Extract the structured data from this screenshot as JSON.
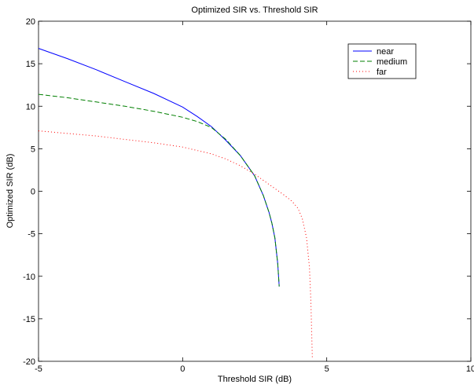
{
  "chart_data": {
    "type": "line",
    "title": "Optimized SIR vs. Threshold SIR",
    "xlabel": "Threshold SIR (dB)",
    "ylabel": "Optimized SIR (dB)",
    "xlim": [
      -5,
      10
    ],
    "ylim": [
      -20,
      20
    ],
    "xticks": [
      -5,
      0,
      5,
      10
    ],
    "yticks": [
      -20,
      -15,
      -10,
      -5,
      0,
      5,
      10,
      15,
      20
    ],
    "grid": false,
    "legend_position": "top-right",
    "series": [
      {
        "name": "near",
        "color": "#0000ff",
        "style": "solid",
        "x": [
          -5,
          -4,
          -3,
          -2,
          -1,
          0,
          0.5,
          1,
          1.5,
          2,
          2.5,
          2.8,
          3.0,
          3.1,
          3.2,
          3.3,
          3.35
        ],
        "y": [
          16.8,
          15.6,
          14.3,
          12.9,
          11.5,
          9.9,
          8.8,
          7.6,
          6.0,
          4.2,
          1.8,
          -0.5,
          -2.5,
          -3.8,
          -5.5,
          -8.5,
          -11.2
        ]
      },
      {
        "name": "medium",
        "color": "#007f00",
        "style": "dashed",
        "x": [
          -5,
          -4,
          -3,
          -2,
          -1,
          0,
          0.5,
          1,
          1.5,
          2,
          2.5,
          2.8,
          3.0,
          3.1,
          3.2,
          3.3,
          3.35
        ],
        "y": [
          11.4,
          11.0,
          10.5,
          10.0,
          9.4,
          8.7,
          8.2,
          7.5,
          6.1,
          4.2,
          1.8,
          -0.5,
          -2.5,
          -3.8,
          -5.5,
          -8.5,
          -11.2
        ]
      },
      {
        "name": "far",
        "color": "#ff0000",
        "style": "dotted",
        "x": [
          -5,
          -4,
          -3,
          -2,
          -1,
          0,
          1,
          1.5,
          2,
          2.5,
          3,
          3.5,
          3.8,
          4.0,
          4.15,
          4.3,
          4.4,
          4.45,
          4.5
        ],
        "y": [
          7.1,
          6.8,
          6.5,
          6.1,
          5.7,
          5.2,
          4.4,
          3.8,
          3.0,
          2.0,
          0.8,
          -0.4,
          -1.2,
          -2.0,
          -3.2,
          -5.5,
          -9.0,
          -13.0,
          -19.5
        ]
      }
    ]
  }
}
